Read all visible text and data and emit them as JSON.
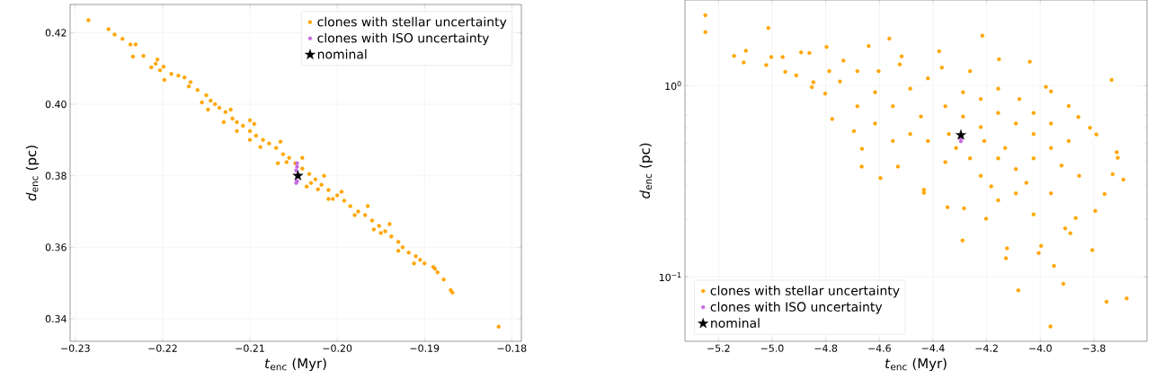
{
  "chart_data": [
    {
      "type": "scatter",
      "xlabel": "*t*$_{enc}$ (Myr)",
      "ylabel": "*d*$_{enc}$ (pc)",
      "xlim": [
        -0.2306,
        -0.1789
      ],
      "ylim": [
        0.3337,
        0.4279
      ],
      "xticks": [
        {
          "value": -0.23,
          "label": "−0.23"
        },
        {
          "value": -0.22,
          "label": "−0.22"
        },
        {
          "value": -0.21,
          "label": "−0.21"
        },
        {
          "value": -0.2,
          "label": "−0.20"
        },
        {
          "value": -0.19,
          "label": "−0.19"
        },
        {
          "value": -0.18,
          "label": "−0.18"
        }
      ],
      "yticks": [
        {
          "value": 0.34,
          "label": "0.34"
        },
        {
          "value": 0.36,
          "label": "0.36"
        },
        {
          "value": 0.38,
          "label": "0.38"
        },
        {
          "value": 0.4,
          "label": "0.40"
        },
        {
          "value": 0.42,
          "label": "0.42"
        }
      ],
      "grid": true,
      "legend": "top right",
      "series": [
        {
          "name": "clones with stellar uncertainty",
          "color": "#ffa500",
          "marker": "circle",
          "x": [
            -0.2285,
            -0.2262,
            -0.2255,
            -0.2246,
            -0.2237,
            -0.2231,
            -0.2234,
            -0.2222,
            -0.2213,
            -0.2208,
            -0.2206,
            -0.2203,
            -0.2199,
            -0.2198,
            -0.219,
            -0.2182,
            -0.2175,
            -0.2168,
            -0.216,
            -0.215,
            -0.2145,
            -0.214,
            -0.2135,
            -0.2128,
            -0.212,
            -0.2115,
            -0.2108,
            -0.21,
            -0.2093,
            -0.2085,
            -0.2078,
            -0.207,
            -0.2062,
            -0.2055,
            -0.2048,
            -0.204,
            -0.2032,
            -0.2025,
            -0.2018,
            -0.201,
            -0.2,
            -0.1992,
            -0.1985,
            -0.1976,
            -0.1968,
            -0.196,
            -0.1952,
            -0.1945,
            -0.1938,
            -0.193,
            -0.1925,
            -0.1918,
            -0.191,
            -0.1905,
            -0.189,
            -0.1885,
            -0.1878,
            -0.187,
            -0.1868,
            -0.1815,
            -0.2148,
            -0.2122,
            -0.2115,
            -0.2095,
            -0.2088,
            -0.2065,
            -0.2058,
            -0.204,
            -0.203,
            -0.2015,
            -0.2005,
            -0.1995,
            -0.198,
            -0.1965,
            -0.1958,
            -0.194,
            -0.193,
            -0.2155,
            -0.217,
            -0.213,
            -0.21,
            -0.2068,
            -0.2022,
            -0.201,
            -0.195,
            -0.1912,
            -0.19,
            -0.1888,
            -0.2035,
            -0.21
          ],
          "values": [
            0.4235,
            0.421,
            0.4195,
            0.4183,
            0.4167,
            0.4167,
            0.4133,
            0.4135,
            0.4103,
            0.4113,
            0.4125,
            0.4095,
            0.4105,
            0.4068,
            0.4085,
            0.408,
            0.4075,
            0.4062,
            0.404,
            0.4025,
            0.401,
            0.4,
            0.399,
            0.3978,
            0.396,
            0.395,
            0.394,
            0.3925,
            0.3912,
            0.39,
            0.389,
            0.3878,
            0.386,
            0.385,
            0.3835,
            0.382,
            0.3805,
            0.379,
            0.3775,
            0.376,
            0.3745,
            0.373,
            0.3715,
            0.37,
            0.369,
            0.3675,
            0.366,
            0.3645,
            0.363,
            0.3615,
            0.36,
            0.3585,
            0.3575,
            0.3565,
            0.3545,
            0.353,
            0.351,
            0.348,
            0.3473,
            0.3378,
            0.3985,
            0.3985,
            0.3925,
            0.3945,
            0.388,
            0.3895,
            0.3838,
            0.385,
            0.378,
            0.38,
            0.3735,
            0.3755,
            0.369,
            0.3715,
            0.365,
            0.3665,
            0.359,
            0.4005,
            0.405,
            0.395,
            0.39,
            0.3835,
            0.3762,
            0.3735,
            0.364,
            0.3555,
            0.3555,
            0.354,
            0.377,
            0.3955
          ]
        },
        {
          "name": "clones with ISO uncertainty",
          "color": "#c76ae0",
          "marker": "circle",
          "x": [
            -0.2046,
            -0.2046,
            -0.2047,
            -0.2046,
            -0.2047
          ],
          "values": [
            0.3835,
            0.3825,
            0.3815,
            0.3785,
            0.378
          ]
        },
        {
          "name": "nominal",
          "color": "#000000",
          "marker": "star",
          "x": [
            -0.2045
          ],
          "values": [
            0.38
          ]
        }
      ]
    },
    {
      "type": "scatter",
      "xlabel": "*t*$_{enc}$ (Myr)",
      "ylabel": "*d*$_{enc}$ (pc)",
      "log": true,
      "xlim": [
        -5.325,
        -3.602
      ],
      "ylim": [
        0.046,
        2.8
      ],
      "xticks": [
        {
          "value": -5.2,
          "label": "−5.2"
        },
        {
          "value": -5.0,
          "label": "−5.0"
        },
        {
          "value": -4.8,
          "label": "−4.8"
        },
        {
          "value": -4.6,
          "label": "−4.6"
        },
        {
          "value": -4.4,
          "label": "−4.4"
        },
        {
          "value": -4.2,
          "label": "−4.2"
        },
        {
          "value": -4.0,
          "label": "−4.0"
        },
        {
          "value": -3.8,
          "label": "−3.8"
        }
      ],
      "yticks": [
        {
          "value": 0.1,
          "label": "10$^{−1}$"
        },
        {
          "value": 1,
          "label": "10$^{0}$"
        }
      ],
      "grid": true,
      "legend": "bottom left",
      "series": [
        {
          "name": "clones with stellar uncertainty",
          "color": "#ffa500",
          "marker": "circle",
          "x": [
            -5.249,
            -5.249,
            -5.014,
            -5.142,
            -5.098,
            -5.106,
            -5.022,
            -5.003,
            -4.961,
            -4.951,
            -4.91,
            -4.892,
            -4.861,
            -4.846,
            -4.852,
            -4.802,
            -4.797,
            -4.776,
            -4.734,
            -4.695,
            -4.665,
            -4.666,
            -4.64,
            -4.596,
            -4.563,
            -4.531,
            -4.517,
            -4.434,
            -4.434,
            -4.377,
            -4.346,
            -4.284,
            -4.29,
            -4.216,
            -4.202,
            -4.154,
            -4.124,
            -4.128,
            -4.082,
            -4.039,
            -3.962,
            -3.949,
            -3.914,
            -3.753,
            -3.678,
            -3.734,
            -3.715,
            -3.711,
            -3.69,
            -3.76,
            -3.73,
            -3.806,
            -3.795,
            -3.791,
            -3.815,
            -3.858,
            -3.894,
            -3.979,
            -3.96,
            -4.025,
            -4.006,
            -3.997,
            -3.888,
            -3.907,
            -3.868,
            -4.682,
            -4.616,
            -4.55,
            -4.485,
            -4.419,
            -4.354,
            -4.288,
            -4.222,
            -4.157,
            -4.091,
            -4.025,
            -3.96,
            -4.157,
            -4.222,
            -4.091,
            -4.025,
            -4.091,
            -3.96,
            -4.157,
            -4.314,
            -4.419,
            -4.485,
            -4.354,
            -4.262,
            -4.55,
            -4.616,
            -4.747,
            -4.787,
            -4.603,
            -4.524,
            -4.445,
            -4.288,
            -4.222,
            -4.025,
            -3.894,
            -3.96,
            -3.855,
            -3.921,
            -4.052,
            -4.183,
            -4.341,
            -4.262,
            -4.367,
            -4.157,
            -4.078,
            -4.682,
            -4.131,
            -4.209
          ],
          "values": [
            2.33,
            1.9,
            2.0,
            1.43,
            1.52,
            1.32,
            1.28,
            1.41,
            1.41,
            1.18,
            1.13,
            1.49,
            1.48,
            1.04,
            0.98,
            0.908,
            1.59,
            0.668,
            1.35,
            0.577,
            0.467,
            0.377,
            1.61,
            0.328,
            1.76,
            0.377,
            1.42,
            0.285,
            0.275,
            1.51,
            0.231,
            0.228,
            0.155,
            1.82,
            0.201,
            1.37,
            0.141,
            0.125,
            0.085,
            1.33,
            0.055,
            0.114,
            0.092,
            0.074,
            0.077,
            1.07,
            0.448,
            0.419,
            0.322,
            0.271,
            0.344,
            0.138,
            0.221,
            0.555,
            0.601,
            0.685,
            0.781,
            0.983,
            0.931,
            0.212,
            0.133,
            0.145,
            0.169,
            0.179,
            0.203,
            1.19,
            0.923,
            0.78,
            0.963,
            1.09,
            0.78,
            0.688,
            0.849,
            0.718,
            0.633,
            0.558,
            0.471,
            0.416,
            0.337,
            0.366,
            0.416,
            0.273,
            0.273,
            0.251,
            0.471,
            0.513,
            0.558,
            0.398,
            0.416,
            0.513,
            0.633,
            1.05,
            1.19,
            1.19,
            1.29,
            0.688,
            0.923,
            0.606,
            0.718,
            0.513,
            0.633,
            0.337,
            0.382,
            0.31,
            0.297,
            0.558,
            1.19,
            1.24,
            0.963,
            0.849,
            0.78,
            0.471,
            0.513
          ]
        },
        {
          "name": "clones with ISO uncertainty",
          "color": "#c76ae0",
          "marker": "circle",
          "x": [
            -4.296,
            -4.296
          ],
          "values": [
            0.512,
            0.53
          ]
        },
        {
          "name": "nominal",
          "color": "#000000",
          "marker": "star",
          "x": [
            -4.296
          ],
          "values": [
            0.551
          ]
        }
      ]
    }
  ]
}
